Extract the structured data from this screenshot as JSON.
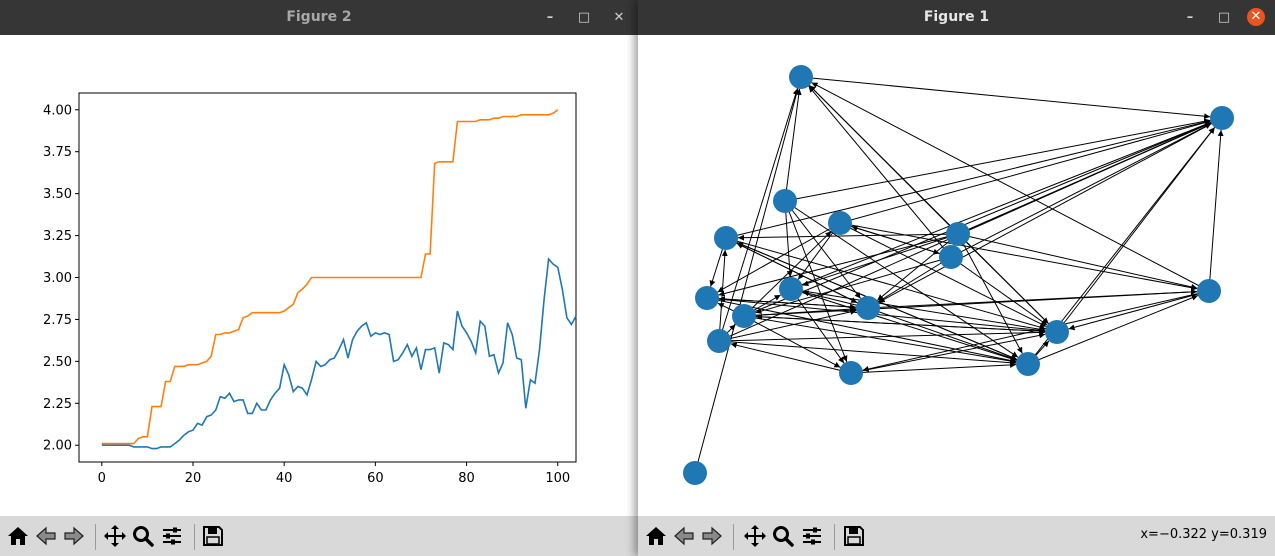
{
  "windows": {
    "figure2": {
      "title": "Figure 2"
    },
    "figure1": {
      "title": "Figure 1"
    }
  },
  "status": {
    "coords": "x=−0.322 y=0.319"
  },
  "toolbar": {
    "buttons": [
      "home-icon",
      "back-icon",
      "forward-icon",
      "pan-icon",
      "zoom-icon",
      "configure-subplots-icon",
      "save-icon"
    ]
  },
  "colors": {
    "series_blue": "#1f77b4",
    "series_orange": "#ff7f0e",
    "node": "#1f77b4",
    "close_button": "#e95420"
  },
  "chart_data": {
    "type": "line",
    "title": "",
    "xlabel": "",
    "ylabel": "",
    "xlim": [
      -5,
      104
    ],
    "ylim": [
      1.9,
      4.1
    ],
    "xticks": [
      0,
      20,
      40,
      60,
      80,
      100
    ],
    "yticks": [
      2.0,
      2.25,
      2.5,
      2.75,
      3.0,
      3.25,
      3.5,
      3.75,
      4.0
    ],
    "ytick_labels": [
      "2.00",
      "2.25",
      "2.50",
      "2.75",
      "3.00",
      "3.25",
      "3.50",
      "3.75",
      "4.00"
    ],
    "grid": false,
    "series": [
      {
        "color": "#1f77b4",
        "values": [
          2.0,
          2.0,
          2.0,
          2.0,
          2.0,
          2.0,
          2.0,
          1.99,
          1.99,
          1.99,
          1.99,
          1.98,
          1.98,
          1.99,
          1.99,
          1.99,
          2.01,
          2.03,
          2.06,
          2.08,
          2.09,
          2.13,
          2.12,
          2.17,
          2.18,
          2.21,
          2.29,
          2.28,
          2.31,
          2.26,
          2.27,
          2.27,
          2.19,
          2.19,
          2.25,
          2.21,
          2.21,
          2.27,
          2.31,
          2.34,
          2.48,
          2.42,
          2.32,
          2.35,
          2.34,
          2.3,
          2.39,
          2.5,
          2.47,
          2.48,
          2.51,
          2.52,
          2.57,
          2.63,
          2.52,
          2.63,
          2.68,
          2.71,
          2.73,
          2.65,
          2.67,
          2.66,
          2.67,
          2.66,
          2.5,
          2.51,
          2.55,
          2.6,
          2.53,
          2.58,
          2.45,
          2.57,
          2.57,
          2.58,
          2.43,
          2.61,
          2.6,
          2.57,
          2.8,
          2.71,
          2.67,
          2.62,
          2.55,
          2.74,
          2.71,
          2.53,
          2.54,
          2.43,
          2.49,
          2.73,
          2.66,
          2.52,
          2.51,
          2.22,
          2.39,
          2.37,
          2.57,
          2.87,
          3.11,
          3.08,
          3.06,
          2.93,
          2.76,
          2.72,
          2.77
        ]
      },
      {
        "color": "#ff7f0e",
        "values": [
          2.01,
          2.01,
          2.01,
          2.01,
          2.01,
          2.01,
          2.01,
          2.01,
          2.04,
          2.05,
          2.05,
          2.23,
          2.23,
          2.23,
          2.38,
          2.38,
          2.47,
          2.47,
          2.47,
          2.48,
          2.48,
          2.48,
          2.49,
          2.5,
          2.53,
          2.66,
          2.66,
          2.67,
          2.67,
          2.68,
          2.69,
          2.76,
          2.77,
          2.79,
          2.79,
          2.79,
          2.79,
          2.79,
          2.79,
          2.79,
          2.8,
          2.82,
          2.84,
          2.91,
          2.93,
          2.96,
          3.0,
          3.0,
          3.0,
          3.0,
          3.0,
          3.0,
          3.0,
          3.0,
          3.0,
          3.0,
          3.0,
          3.0,
          3.0,
          3.0,
          3.0,
          3.0,
          3.0,
          3.0,
          3.0,
          3.0,
          3.0,
          3.0,
          3.0,
          3.0,
          3.0,
          3.14,
          3.14,
          3.68,
          3.69,
          3.69,
          3.69,
          3.69,
          3.93,
          3.93,
          3.93,
          3.93,
          3.93,
          3.94,
          3.94,
          3.94,
          3.95,
          3.95,
          3.96,
          3.96,
          3.96,
          3.96,
          3.97,
          3.97,
          3.97,
          3.97,
          3.97,
          3.97,
          3.97,
          3.98,
          4.0
        ]
      }
    ]
  },
  "graph": {
    "nodes": [
      "n1",
      "n2",
      "n3",
      "n4",
      "n5",
      "n6",
      "n7",
      "n8",
      "n9",
      "n10",
      "n11",
      "n12",
      "n13",
      "n14",
      "n15",
      "n16",
      "n17"
    ],
    "edges": [
      [
        "n1",
        "n2"
      ],
      [
        "n14",
        "n1"
      ],
      [
        "n13",
        "n1"
      ],
      [
        "n3",
        "n1"
      ],
      [
        "n17",
        "n1"
      ],
      [
        "n6",
        "n1"
      ],
      [
        "n12",
        "n1"
      ],
      [
        "n5",
        "n1"
      ],
      [
        "n3",
        "n2"
      ],
      [
        "n4",
        "n2"
      ],
      [
        "n7",
        "n2"
      ],
      [
        "n6",
        "n2"
      ],
      [
        "n9",
        "n2"
      ],
      [
        "n12",
        "n2"
      ],
      [
        "n5",
        "n2"
      ],
      [
        "n15",
        "n2"
      ],
      [
        "n14",
        "n2"
      ],
      [
        "n10",
        "n2"
      ],
      [
        "n13",
        "n2"
      ],
      [
        "n3",
        "n11"
      ],
      [
        "n5",
        "n11"
      ],
      [
        "n6",
        "n11"
      ],
      [
        "n7",
        "n11"
      ],
      [
        "n10",
        "n11"
      ],
      [
        "n13",
        "n11"
      ],
      [
        "n8",
        "n11"
      ],
      [
        "n2",
        "n11"
      ],
      [
        "n7",
        "n15"
      ],
      [
        "n3",
        "n15"
      ],
      [
        "n5",
        "n15"
      ],
      [
        "n8",
        "n15"
      ],
      [
        "n9",
        "n15"
      ],
      [
        "n16",
        "n15"
      ],
      [
        "n10",
        "n15"
      ],
      [
        "n13",
        "n15"
      ],
      [
        "n11",
        "n15"
      ],
      [
        "n5",
        "n9"
      ],
      [
        "n3",
        "n9"
      ],
      [
        "n4",
        "n9"
      ],
      [
        "n11",
        "n9"
      ],
      [
        "n10",
        "n9"
      ],
      [
        "n13",
        "n10"
      ],
      [
        "n6",
        "n10"
      ],
      [
        "n14",
        "n10"
      ],
      [
        "n5",
        "n8"
      ],
      [
        "n5",
        "n6"
      ],
      [
        "n4",
        "n6"
      ],
      [
        "n6",
        "n4"
      ],
      [
        "n10",
        "n4"
      ],
      [
        "n13",
        "n7"
      ],
      [
        "n11",
        "n7"
      ],
      [
        "n15",
        "n7"
      ],
      [
        "n10",
        "n16"
      ],
      [
        "n3",
        "n16"
      ],
      [
        "n12",
        "n16"
      ],
      [
        "n9",
        "n16"
      ],
      [
        "n5",
        "n12"
      ],
      [
        "n4",
        "n12"
      ],
      [
        "n11",
        "n12"
      ],
      [
        "n15",
        "n12"
      ],
      [
        "n10",
        "n12"
      ],
      [
        "n4",
        "n8"
      ],
      [
        "n11",
        "n8"
      ],
      [
        "n10",
        "n8"
      ],
      [
        "n7",
        "n8"
      ],
      [
        "n10",
        "n14"
      ],
      [
        "n7",
        "n14"
      ],
      [
        "n8",
        "n14"
      ],
      [
        "n15",
        "n14"
      ],
      [
        "n16",
        "n14"
      ],
      [
        "n9",
        "n14"
      ],
      [
        "n12",
        "n14"
      ],
      [
        "n4",
        "n14"
      ],
      [
        "n5",
        "n14"
      ],
      [
        "n6",
        "n14"
      ],
      [
        "n13",
        "n14"
      ],
      [
        "n16",
        "n13"
      ],
      [
        "n5",
        "n7"
      ]
    ]
  }
}
